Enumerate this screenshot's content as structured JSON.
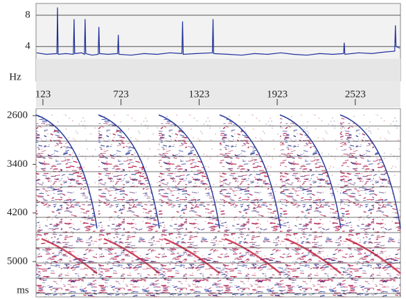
{
  "chart_data": [
    {
      "type": "line",
      "y_label": "Hz",
      "x": [
        75,
        150,
        230,
        235,
        240,
        300,
        357,
        362,
        367,
        420,
        442,
        447,
        452,
        500,
        548,
        553,
        558,
        620,
        697,
        702,
        707,
        800,
        900,
        1000,
        1100,
        1191,
        1196,
        1201,
        1300,
        1425,
        1430,
        1435,
        1550,
        1650,
        1750,
        1850,
        1950,
        2050,
        2150,
        2250,
        2350,
        2433,
        2438,
        2443,
        2550,
        2650,
        2750,
        2826,
        2831,
        2836,
        2865
      ],
      "series": [
        {
          "color": "#1f2f9a",
          "values": [
            3.2,
            3.0,
            3.1,
            9.0,
            3.0,
            3.1,
            3.0,
            7.5,
            3.1,
            3.2,
            3.0,
            7.5,
            3.1,
            2.9,
            3.0,
            6.5,
            3.1,
            3.0,
            3.1,
            5.5,
            3.0,
            2.9,
            3.1,
            3.0,
            3.2,
            3.1,
            7.2,
            3.0,
            3.1,
            3.2,
            7.5,
            3.1,
            3.0,
            2.9,
            3.1,
            3.0,
            3.2,
            3.0,
            2.9,
            3.1,
            3.0,
            3.1,
            4.5,
            3.0,
            3.2,
            3.1,
            3.3,
            3.4,
            6.7,
            4.0,
            3.8
          ]
        }
      ],
      "xlim": [
        70,
        2870
      ],
      "xticks": [
        123,
        723,
        1323,
        1923,
        2523
      ],
      "ylim": [
        -0.4,
        9.5
      ],
      "yticks": [
        4,
        8
      ],
      "grid": true
    },
    {
      "type": "seismic",
      "y_label": "ms",
      "ylim": [
        2485,
        5580
      ],
      "yticks": [
        2600,
        3400,
        4200,
        5000
      ],
      "inverted": true
    }
  ]
}
